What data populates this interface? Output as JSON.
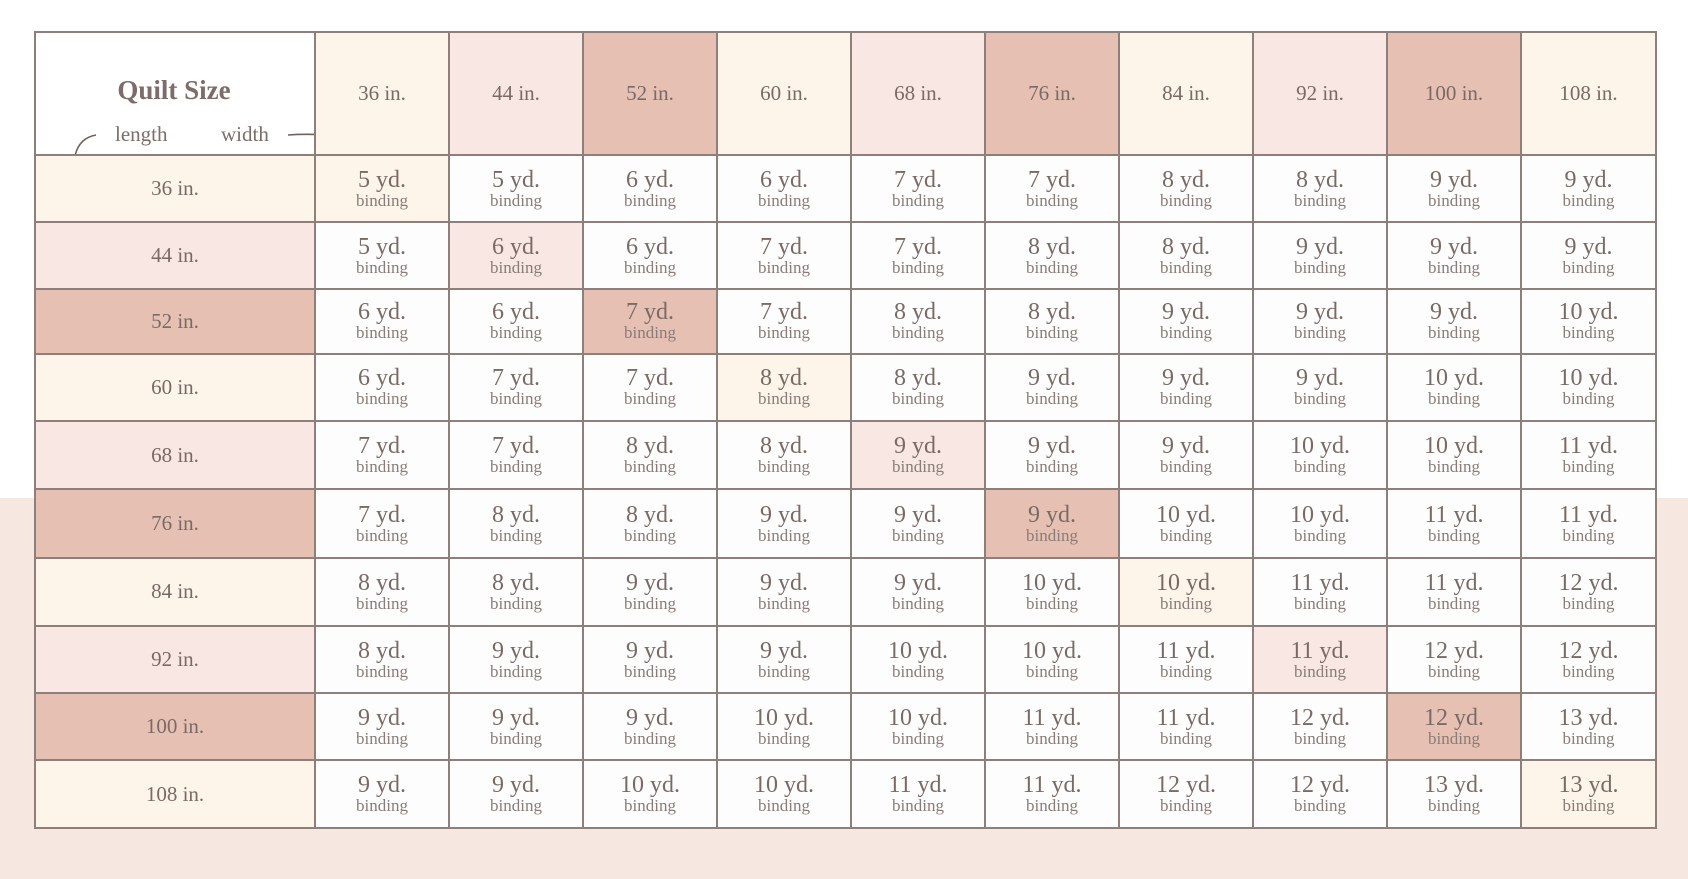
{
  "corner": {
    "title": "Quilt Size",
    "length_label": "length",
    "width_label": "width"
  },
  "columns": [
    "36 in.",
    "44 in.",
    "52 in.",
    "60 in.",
    "68 in.",
    "76 in.",
    "84 in.",
    "92 in.",
    "100 in.",
    "108 in."
  ],
  "rows": [
    "36 in.",
    "44 in.",
    "52 in.",
    "60 in.",
    "68 in.",
    "76 in.",
    "84 in.",
    "92 in.",
    "100 in.",
    "108 in."
  ],
  "binding_label": "binding",
  "values": [
    [
      "5 yd.",
      "5 yd.",
      "6 yd.",
      "6 yd.",
      "7 yd.",
      "7 yd.",
      "8 yd.",
      "8 yd.",
      "9 yd.",
      "9 yd."
    ],
    [
      "5 yd.",
      "6 yd.",
      "6 yd.",
      "7 yd.",
      "7 yd.",
      "8 yd.",
      "8 yd.",
      "9 yd.",
      "9 yd.",
      "9 yd."
    ],
    [
      "6 yd.",
      "6 yd.",
      "7 yd.",
      "7 yd.",
      "8 yd.",
      "8 yd.",
      "9 yd.",
      "9 yd.",
      "9 yd.",
      "10 yd."
    ],
    [
      "6 yd.",
      "7 yd.",
      "7 yd.",
      "8 yd.",
      "8 yd.",
      "9 yd.",
      "9 yd.",
      "9 yd.",
      "10 yd.",
      "10 yd."
    ],
    [
      "7 yd.",
      "7 yd.",
      "8 yd.",
      "8 yd.",
      "9 yd.",
      "9 yd.",
      "9 yd.",
      "10 yd.",
      "10 yd.",
      "11 yd."
    ],
    [
      "7 yd.",
      "8 yd.",
      "8 yd.",
      "9 yd.",
      "9 yd.",
      "9 yd.",
      "10 yd.",
      "10 yd.",
      "11 yd.",
      "11 yd."
    ],
    [
      "8 yd.",
      "8 yd.",
      "9 yd.",
      "9 yd.",
      "9 yd.",
      "10 yd.",
      "10 yd.",
      "11 yd.",
      "11 yd.",
      "12 yd."
    ],
    [
      "8 yd.",
      "9 yd.",
      "9 yd.",
      "9 yd.",
      "10 yd.",
      "10 yd.",
      "11 yd.",
      "11 yd.",
      "12 yd.",
      "12 yd."
    ],
    [
      "9 yd.",
      "9 yd.",
      "9 yd.",
      "10 yd.",
      "10 yd.",
      "11 yd.",
      "11 yd.",
      "12 yd.",
      "12 yd.",
      "13 yd."
    ],
    [
      "9 yd.",
      "9 yd.",
      "10 yd.",
      "10 yd.",
      "11 yd.",
      "11 yd.",
      "12 yd.",
      "12 yd.",
      "13 yd.",
      "13 yd."
    ]
  ],
  "tints": [
    "cream",
    "pink",
    "rose",
    "cream",
    "pink",
    "rose",
    "cream",
    "pink",
    "rose",
    "cream"
  ],
  "colors": {
    "cream": "#fdf4ea",
    "pink": "#f8e7e2",
    "rose": "#e6c0b2",
    "grid": "#8e7f7a",
    "text": "#7a6a66",
    "page_lower": "#f6e7e1"
  }
}
